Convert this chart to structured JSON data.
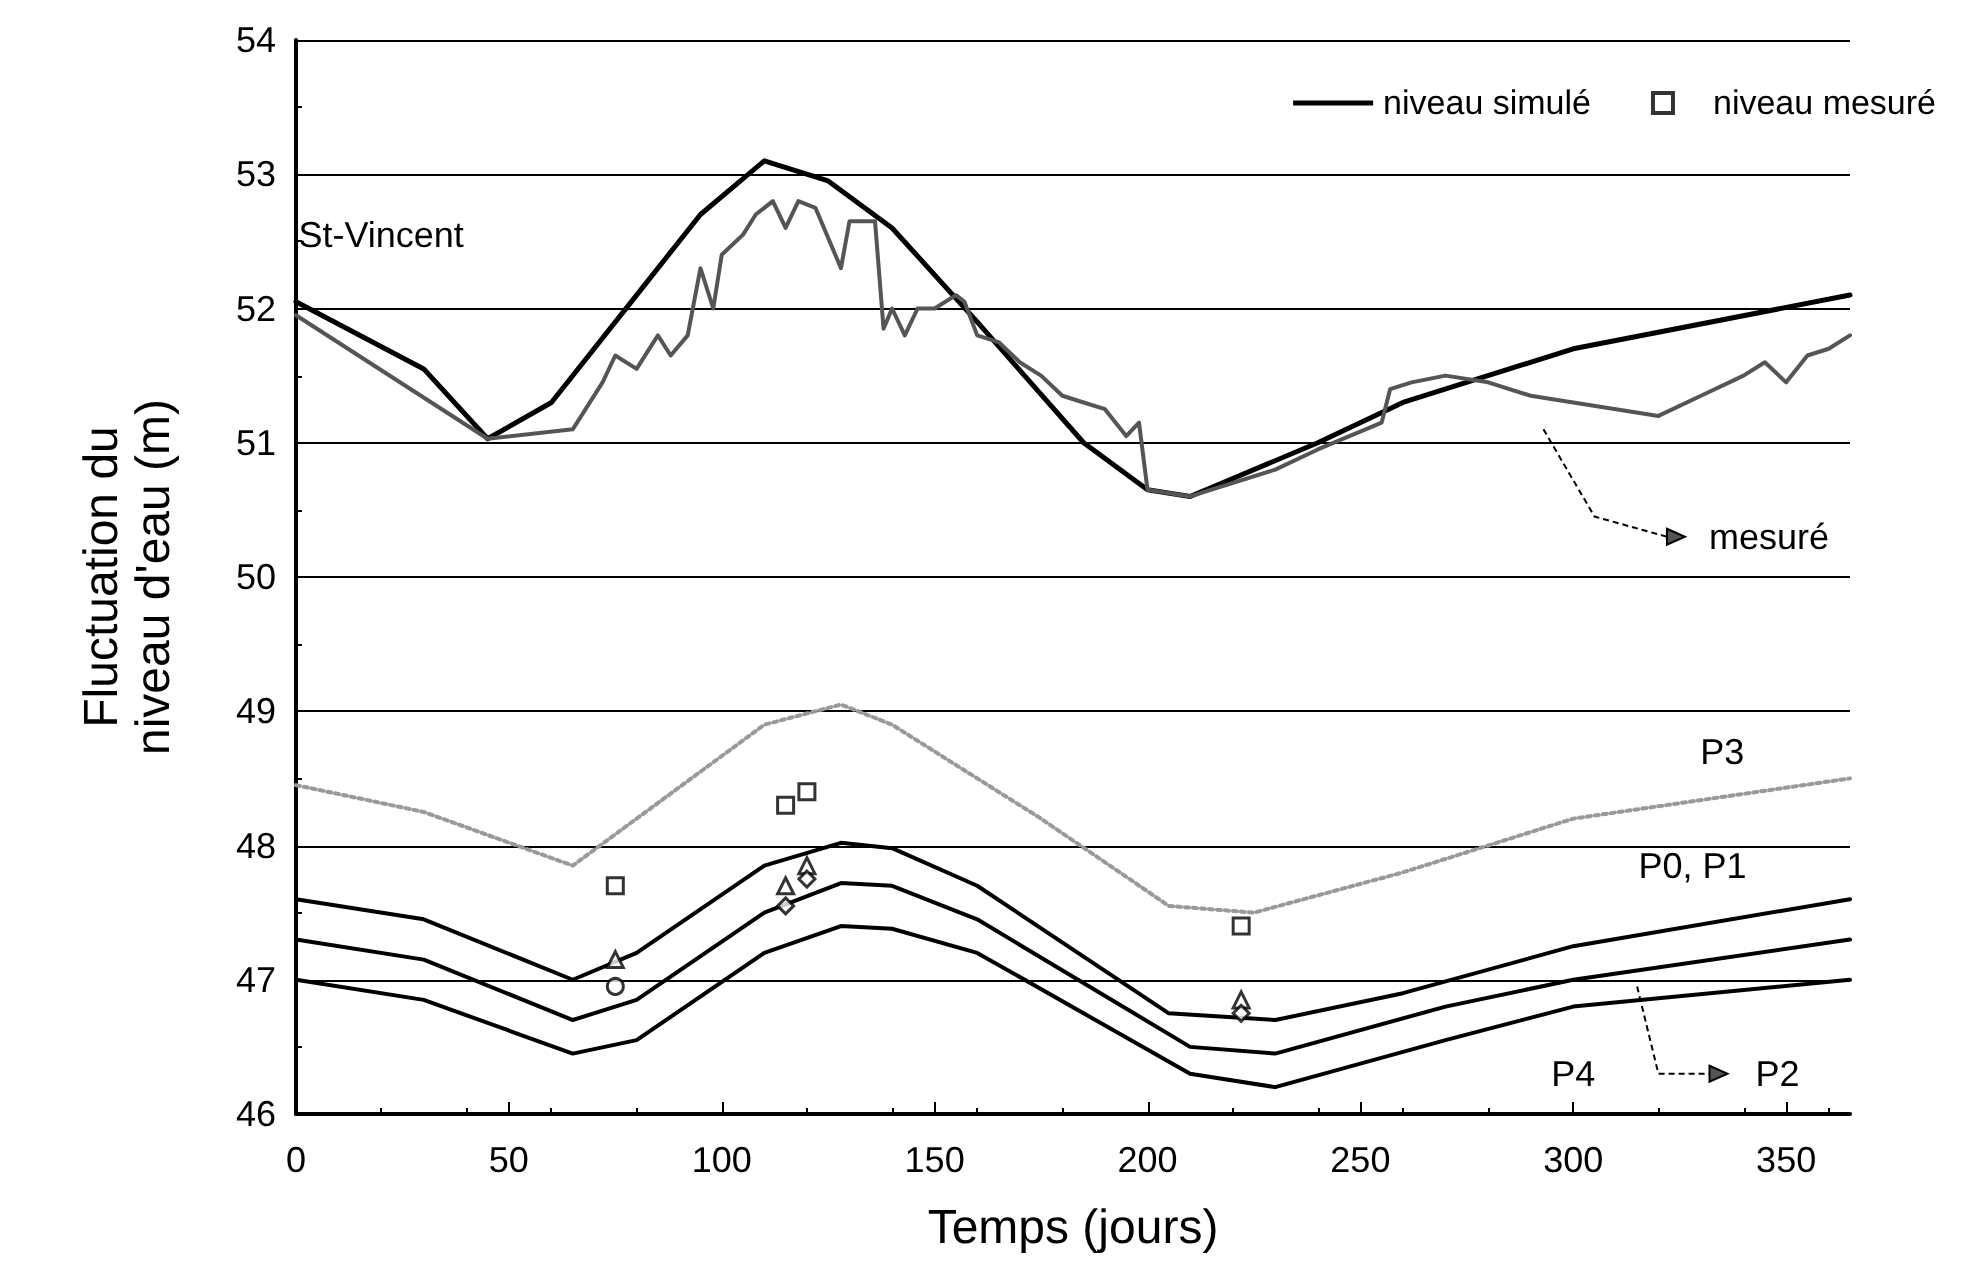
{
  "chart_data": {
    "type": "line",
    "xlabel": "Temps (jours)",
    "ylabel": "Fluctuation du\nniveau d'eau (m)",
    "xlim": [
      0,
      365
    ],
    "xticks": [
      0,
      50,
      100,
      150,
      200,
      250,
      300,
      350
    ],
    "ylim": [
      46,
      54
    ],
    "yticks": [
      46,
      47,
      48,
      49,
      50,
      51,
      52,
      53,
      54
    ],
    "grid": "y",
    "legend": "top right",
    "series": [
      {
        "name": "niveau simulé",
        "color": "#000000",
        "marker": "none",
        "x": [
          0,
          30,
          45,
          60,
          80,
          95,
          110,
          125,
          140,
          160,
          185,
          200,
          210,
          240,
          260,
          300,
          365
        ],
        "values": [
          52.05,
          51.55,
          51.03,
          51.3,
          52.1,
          52.7,
          53.1,
          52.95,
          52.6,
          51.9,
          51.0,
          50.65,
          50.6,
          51.0,
          51.3,
          51.7,
          52.1
        ]
      },
      {
        "color": "#555555",
        "marker": "none",
        "x": [
          0,
          45,
          65,
          72,
          75,
          80,
          85,
          88,
          92,
          95,
          98,
          100,
          105,
          108,
          112,
          115,
          118,
          122,
          128,
          130,
          136,
          138,
          140,
          143,
          146,
          150,
          155,
          157,
          160,
          165,
          170,
          175,
          180,
          185,
          190,
          195,
          198,
          200,
          210,
          230,
          240,
          255,
          257,
          262,
          270,
          280,
          290,
          300,
          310,
          320,
          330,
          340,
          345,
          350,
          355,
          360,
          365
        ],
        "values": [
          51.95,
          51.03,
          51.1,
          51.45,
          51.65,
          51.55,
          51.8,
          51.65,
          51.8,
          52.3,
          52.0,
          52.4,
          52.55,
          52.7,
          52.8,
          52.6,
          52.8,
          52.75,
          52.3,
          52.65,
          52.65,
          51.85,
          52.0,
          51.8,
          52.0,
          52.0,
          52.1,
          52.05,
          51.8,
          51.75,
          51.6,
          51.5,
          51.35,
          51.3,
          51.25,
          51.05,
          51.15,
          50.65,
          50.6,
          50.8,
          50.95,
          51.15,
          51.4,
          51.45,
          51.5,
          51.45,
          51.35,
          51.3,
          51.25,
          51.2,
          51.35,
          51.5,
          51.6,
          51.45,
          51.65,
          51.7,
          51.8
        ]
      },
      {
        "name": "niveau mesuré",
        "type": "scatter",
        "color": "#000000",
        "marker": "square",
        "x": [
          75,
          115,
          120,
          222
        ],
        "values": [
          47.7,
          48.3,
          48.4,
          47.4
        ]
      },
      {
        "type": "scatter",
        "color": "#000000",
        "marker": "triangle",
        "x": [
          75,
          115,
          120,
          222
        ],
        "values": [
          47.15,
          47.7,
          47.85,
          46.85
        ]
      },
      {
        "type": "scatter",
        "color": "#000000",
        "marker": "circle",
        "x": [
          75
        ],
        "values": [
          46.95
        ]
      },
      {
        "type": "scatter",
        "color": "#000000",
        "marker": "diamond",
        "x": [
          115,
          120,
          222
        ],
        "values": [
          47.55,
          47.75,
          46.75
        ]
      },
      {
        "color": "#999999",
        "marker": "none",
        "line_style": "dotted",
        "x": [
          0,
          30,
          65,
          80,
          110,
          128,
          140,
          175,
          205,
          225,
          260,
          300,
          365
        ],
        "values": [
          48.45,
          48.25,
          47.85,
          48.2,
          48.9,
          49.05,
          48.9,
          48.2,
          47.55,
          47.5,
          47.8,
          48.2,
          48.5
        ]
      },
      {
        "color": "#000000",
        "marker": "none",
        "x": [
          0,
          30,
          65,
          80,
          110,
          128,
          140,
          160,
          205,
          230,
          260,
          300,
          365
        ],
        "values": [
          47.6,
          47.45,
          47.0,
          47.2,
          47.85,
          48.02,
          47.98,
          47.7,
          46.75,
          46.7,
          46.9,
          47.25,
          47.6
        ]
      },
      {
        "color": "#000000",
        "marker": "none",
        "x": [
          0,
          30,
          65,
          80,
          110,
          128,
          140,
          160,
          210,
          230,
          270,
          300,
          365
        ],
        "values": [
          47.3,
          47.15,
          46.7,
          46.85,
          47.5,
          47.72,
          47.7,
          47.45,
          46.5,
          46.45,
          46.8,
          47.0,
          47.3
        ]
      },
      {
        "color": "#000000",
        "marker": "none",
        "x": [
          0,
          30,
          65,
          80,
          110,
          128,
          140,
          160,
          210,
          230,
          270,
          300,
          365
        ],
        "values": [
          47.0,
          46.85,
          46.45,
          46.55,
          47.2,
          47.4,
          47.38,
          47.2,
          46.3,
          46.2,
          46.55,
          46.8,
          47.0
        ]
      }
    ],
    "annotations": [
      "St-Vincent",
      "mesuré",
      "P3",
      "P0, P1",
      "P4",
      "P2"
    ]
  }
}
